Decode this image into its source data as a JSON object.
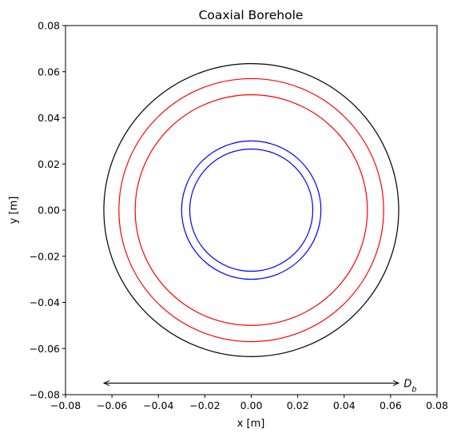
{
  "chart_data": {
    "type": "line",
    "title": "Coaxial Borehole",
    "xlabel": "x [m]",
    "ylabel": "y [m]",
    "xlim": [
      -0.08,
      0.08
    ],
    "ylim": [
      -0.08,
      0.08
    ],
    "xticks": [
      -0.08,
      -0.06,
      -0.04,
      -0.02,
      0.0,
      0.02,
      0.04,
      0.06,
      0.08
    ],
    "yticks": [
      -0.08,
      -0.06,
      -0.04,
      -0.02,
      0.0,
      0.02,
      0.04,
      0.06,
      0.08
    ],
    "xtick_labels": [
      "−0.08",
      "−0.06",
      "−0.04",
      "−0.02",
      "0.00",
      "0.02",
      "0.04",
      "0.06",
      "0.08"
    ],
    "ytick_labels": [
      "−0.08",
      "−0.06",
      "−0.04",
      "−0.02",
      "0.00",
      "0.02",
      "0.04",
      "0.06",
      "0.08"
    ],
    "grid": false,
    "circles": [
      {
        "name": "borehole-wall",
        "center": [
          0,
          0
        ],
        "radius": 0.0635,
        "color": "#000000"
      },
      {
        "name": "outer-pipe-outer-wall",
        "center": [
          0,
          0
        ],
        "radius": 0.057,
        "color": "#ff0000"
      },
      {
        "name": "outer-pipe-inner-wall",
        "center": [
          0,
          0
        ],
        "radius": 0.05,
        "color": "#ff0000"
      },
      {
        "name": "inner-pipe-outer-wall",
        "center": [
          0,
          0
        ],
        "radius": 0.03,
        "color": "#0000ff"
      },
      {
        "name": "inner-pipe-inner-wall",
        "center": [
          0,
          0
        ],
        "radius": 0.0265,
        "color": "#0000ff"
      }
    ],
    "annotation": {
      "type": "double-arrow",
      "from": [
        -0.0635,
        -0.075
      ],
      "to": [
        0.0635,
        -0.075
      ],
      "label": "D",
      "label_subscript": "b",
      "label_at": [
        0.065,
        -0.075
      ]
    }
  }
}
